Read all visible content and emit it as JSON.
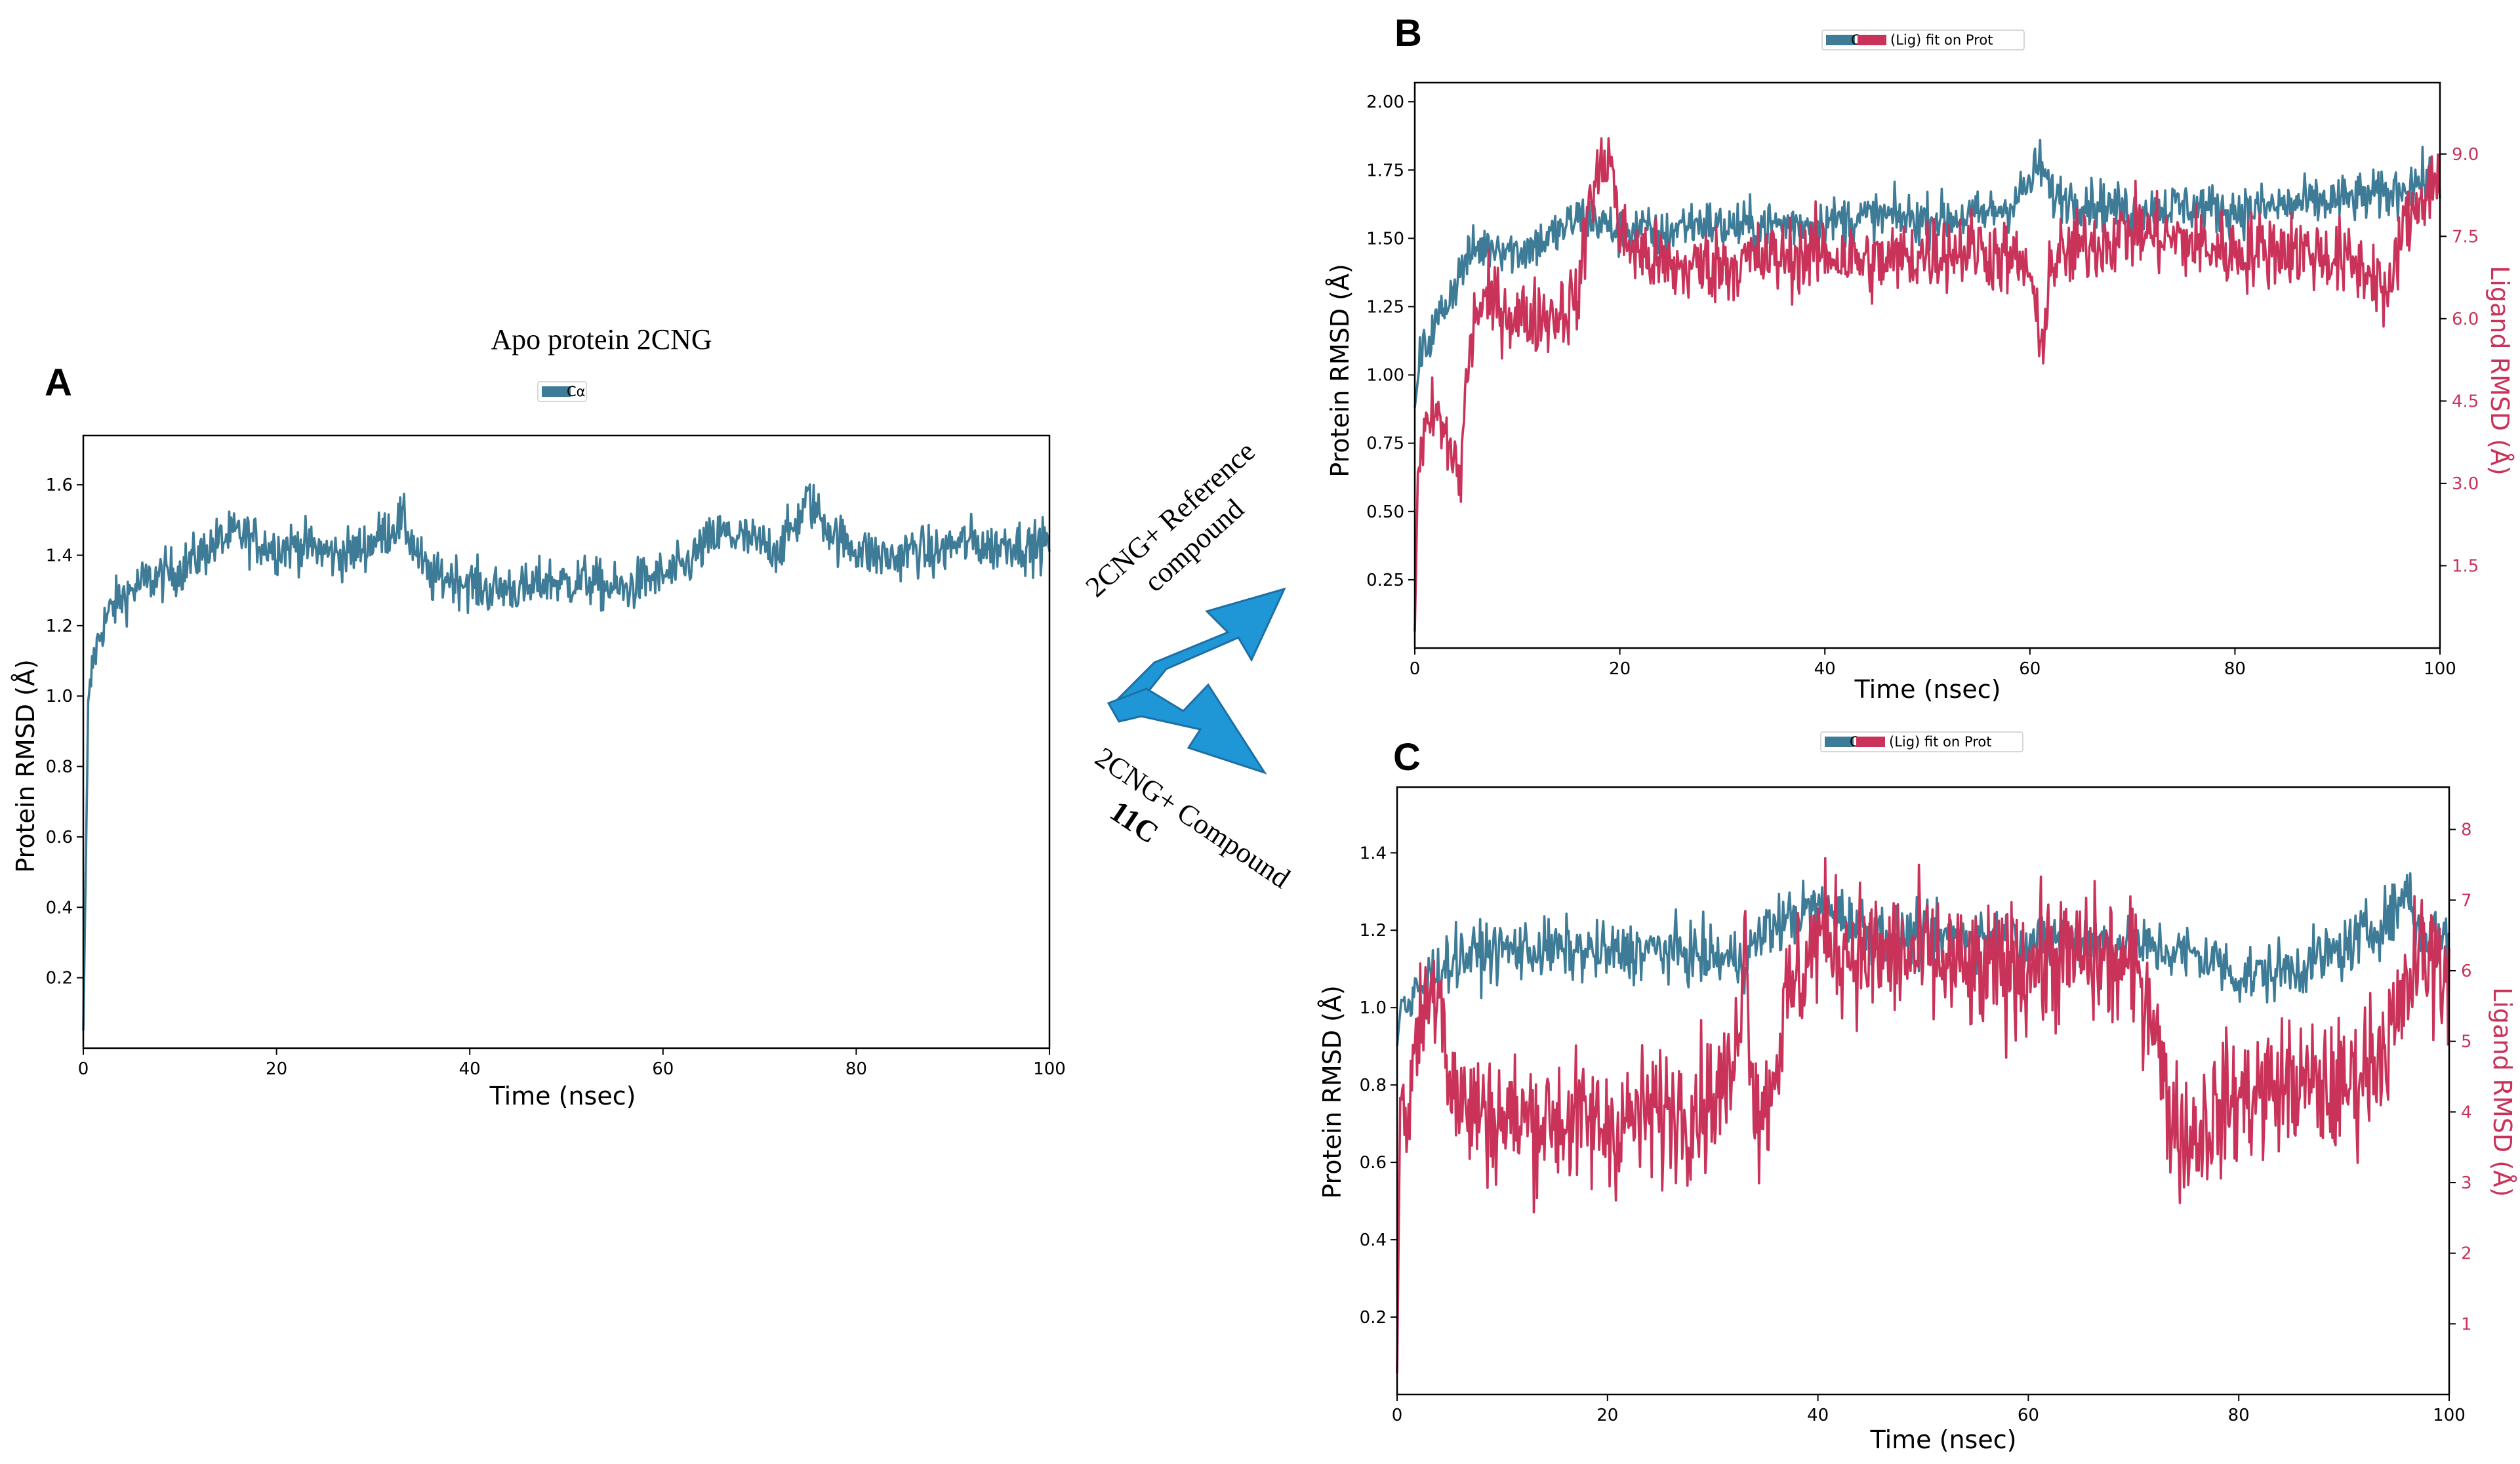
{
  "colors": {
    "protein": "#3e7b96",
    "ligand": "#c9335a",
    "arrow": "#1f96d6",
    "arrow_edge": "#1d6fa5"
  },
  "arrows": {
    "upper_label_line1": "2CNG+ Reference",
    "upper_label_line2": "compound",
    "lower_label_line1": "2CNG+ Compound",
    "lower_label_line2": "11C"
  },
  "chart_data": [
    {
      "id": "A",
      "type": "line",
      "panel_label": "A",
      "title": "Apo protein 2CNG",
      "legend": [
        "Cα"
      ],
      "legend_placement": "top-center",
      "xlabel": "Time (nsec)",
      "ylabel": "Protein RMSD (Å)",
      "xlim": [
        0,
        100
      ],
      "ylim": [
        0,
        1.74
      ],
      "xticks": [
        0,
        20,
        40,
        60,
        80,
        100
      ],
      "yticks": [
        0.2,
        0.4,
        0.6,
        0.8,
        1.0,
        1.2,
        1.4,
        1.6
      ],
      "series": [
        {
          "name": "Cα",
          "axis": "left",
          "color": "#3e7b96",
          "x": [
            0,
            0.5,
            1,
            2,
            3,
            4,
            5,
            6,
            8,
            10,
            12,
            14,
            16,
            18,
            20,
            22,
            24,
            26,
            28,
            30,
            32,
            33,
            34,
            35,
            36,
            38,
            40,
            42,
            44,
            46,
            48,
            50,
            52,
            54,
            56,
            58,
            60,
            62,
            64,
            66,
            68,
            70,
            72,
            74,
            75,
            76,
            78,
            80,
            82,
            84,
            86,
            88,
            90,
            92,
            94,
            96,
            98,
            100
          ],
          "y": [
            0.05,
            0.95,
            1.1,
            1.2,
            1.25,
            1.28,
            1.3,
            1.32,
            1.34,
            1.36,
            1.4,
            1.44,
            1.46,
            1.44,
            1.42,
            1.43,
            1.42,
            1.4,
            1.41,
            1.44,
            1.48,
            1.5,
            1.44,
            1.38,
            1.33,
            1.34,
            1.32,
            1.3,
            1.31,
            1.3,
            1.33,
            1.32,
            1.33,
            1.31,
            1.3,
            1.33,
            1.34,
            1.36,
            1.42,
            1.46,
            1.45,
            1.43,
            1.42,
            1.5,
            1.56,
            1.52,
            1.45,
            1.42,
            1.4,
            1.39,
            1.42,
            1.4,
            1.43,
            1.44,
            1.42,
            1.44,
            1.42,
            1.44
          ]
        }
      ]
    },
    {
      "id": "B",
      "type": "line",
      "panel_label": "B",
      "legend": [
        "Cα",
        "(Lig) fit on Prot"
      ],
      "legend_placement": "top-center",
      "xlabel": "Time (nsec)",
      "ylabel": "Protein RMSD (Å)",
      "y2label": "Ligand RMSD (Å)",
      "xlim": [
        0,
        100
      ],
      "ylim": [
        0,
        2.07
      ],
      "y2lim": [
        0,
        10.3
      ],
      "xticks": [
        0,
        20,
        40,
        60,
        80,
        100
      ],
      "yticks": [
        0.25,
        0.5,
        0.75,
        1.0,
        1.25,
        1.5,
        1.75,
        2.0
      ],
      "y2ticks": [
        1.5,
        3.0,
        4.5,
        6.0,
        7.5,
        9.0
      ],
      "y2ticklabels": [
        "1.5",
        "3.0",
        "4.5",
        "6.0",
        "7.5",
        "9.0"
      ],
      "series": [
        {
          "name": "Cα",
          "axis": "left",
          "color": "#3e7b96",
          "x": [
            0,
            0.5,
            1,
            2,
            3,
            4,
            5,
            6,
            8,
            10,
            12,
            14,
            16,
            18,
            20,
            22,
            24,
            26,
            28,
            30,
            35,
            40,
            45,
            50,
            55,
            58,
            60,
            61,
            62,
            65,
            70,
            75,
            80,
            85,
            90,
            95,
            97,
            100
          ],
          "y": [
            0.88,
            1.05,
            1.1,
            1.18,
            1.26,
            1.34,
            1.42,
            1.46,
            1.48,
            1.45,
            1.48,
            1.52,
            1.58,
            1.56,
            1.52,
            1.54,
            1.5,
            1.55,
            1.56,
            1.54,
            1.55,
            1.56,
            1.58,
            1.57,
            1.58,
            1.62,
            1.7,
            1.78,
            1.66,
            1.64,
            1.6,
            1.62,
            1.6,
            1.62,
            1.64,
            1.66,
            1.7,
            1.72
          ]
        },
        {
          "name": "(Lig) fit on Prot",
          "axis": "right",
          "color": "#c9335a",
          "x": [
            0,
            0.3,
            1,
            2,
            3,
            4,
            4.5,
            5,
            6,
            8,
            10,
            14,
            16,
            17,
            18,
            19,
            20,
            22,
            25,
            30,
            35,
            40,
            45,
            50,
            55,
            60,
            61,
            62,
            65,
            70,
            75,
            80,
            85,
            90,
            94,
            95,
            96,
            98,
            100
          ],
          "y": [
            0.3,
            3.2,
            3.8,
            4.3,
            3.8,
            3.4,
            3.1,
            4.8,
            6.2,
            6.3,
            6.0,
            6.1,
            6.4,
            8.2,
            8.6,
            9.1,
            7.5,
            7.2,
            6.9,
            7.0,
            7.1,
            7.2,
            7.0,
            7.2,
            7.3,
            6.9,
            5.3,
            7.0,
            7.3,
            7.6,
            7.4,
            7.2,
            7.3,
            7.1,
            6.8,
            6.2,
            7.4,
            8.2,
            8.6
          ]
        }
      ]
    },
    {
      "id": "C",
      "type": "line",
      "panel_label": "C",
      "legend": [
        "Cα",
        "(Lig) fit on Prot"
      ],
      "legend_placement": "top-center",
      "xlabel": "Time (nsec)",
      "ylabel": "Protein RMSD (Å)",
      "y2label": "Ligand RMSD (Å)",
      "xlim": [
        0,
        100
      ],
      "ylim": [
        0,
        1.57
      ],
      "y2lim": [
        0,
        8.6
      ],
      "xticks": [
        0,
        20,
        40,
        60,
        80,
        100
      ],
      "yticks": [
        0.2,
        0.4,
        0.6,
        0.8,
        1.0,
        1.2,
        1.4
      ],
      "y2ticks": [
        1,
        2,
        3,
        4,
        5,
        6,
        7,
        8
      ],
      "y2ticklabels": [
        "1",
        "2",
        "3",
        "4",
        "5",
        "6",
        "7",
        "8"
      ],
      "series": [
        {
          "name": "Cα",
          "axis": "left",
          "color": "#3e7b96",
          "x": [
            0,
            0.5,
            1,
            2,
            3,
            4,
            5,
            6,
            8,
            10,
            15,
            20,
            25,
            30,
            33,
            35,
            38,
            40,
            42,
            45,
            50,
            55,
            60,
            65,
            70,
            75,
            78,
            80,
            85,
            90,
            95,
            96,
            97,
            100
          ],
          "y": [
            0.9,
            1.05,
            0.98,
            1.04,
            1.08,
            1.1,
            1.12,
            1.13,
            1.14,
            1.15,
            1.15,
            1.14,
            1.15,
            1.13,
            1.12,
            1.2,
            1.24,
            1.26,
            1.24,
            1.2,
            1.18,
            1.19,
            1.17,
            1.18,
            1.16,
            1.14,
            1.12,
            1.08,
            1.1,
            1.15,
            1.25,
            1.32,
            1.2,
            1.18
          ]
        },
        {
          "name": "(Lig) fit on Prot",
          "axis": "right",
          "color": "#c9335a",
          "x": [
            0,
            0.3,
            1,
            2,
            3,
            4,
            5,
            6,
            8,
            10,
            15,
            20,
            25,
            28,
            30,
            32,
            33,
            34,
            35,
            37,
            40,
            45,
            50,
            55,
            60,
            65,
            70,
            72,
            73,
            75,
            78,
            80,
            85,
            90,
            95,
            97,
            100
          ],
          "y": [
            0.3,
            4.2,
            4.0,
            5.2,
            5.6,
            6.0,
            4.5,
            4.1,
            4.0,
            3.9,
            3.9,
            3.8,
            4.0,
            4.1,
            4.2,
            4.5,
            6.5,
            4.2,
            4.0,
            5.5,
            6.5,
            6.2,
            6.2,
            5.9,
            6.1,
            6.2,
            6.0,
            5.5,
            4.2,
            3.6,
            4.0,
            4.2,
            4.4,
            4.3,
            5.2,
            6.2,
            6.0
          ]
        }
      ]
    }
  ]
}
